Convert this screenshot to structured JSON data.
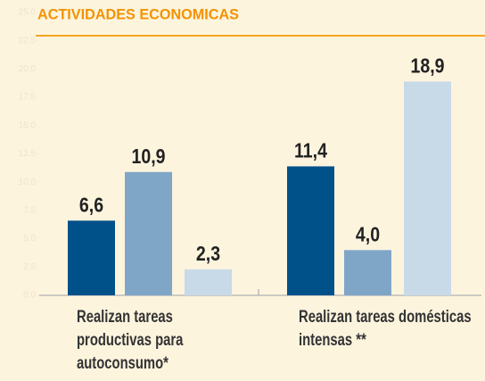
{
  "chart_data": {
    "type": "bar",
    "title": "ACTIVIDADES ECONOMICAS",
    "categories": [
      "Realizan tareas productivas para autoconsumo*",
      "Realizan tareas domésticas intensas **"
    ],
    "series": [
      {
        "color": "#00508a",
        "values": [
          6.6,
          11.4
        ],
        "value_labels": [
          "6,6",
          "11,4"
        ]
      },
      {
        "color": "#7fa6c7",
        "values": [
          10.9,
          4.0
        ],
        "value_labels": [
          "10,9",
          "4,0"
        ]
      },
      {
        "color": "#c8dae8",
        "values": [
          2.3,
          18.9
        ],
        "value_labels": [
          "2,3",
          "18,9"
        ]
      }
    ],
    "ylim": [
      0,
      25
    ],
    "yticks": [
      {
        "value": 0,
        "label": "0.0"
      },
      {
        "value": 2.5,
        "label": "2.5"
      },
      {
        "value": 5,
        "label": "5.0"
      },
      {
        "value": 7.5,
        "label": "7.5"
      },
      {
        "value": 10,
        "label": "10.0"
      },
      {
        "value": 12.5,
        "label": "12.5"
      },
      {
        "value": 15,
        "label": "15.0"
      },
      {
        "value": 17.5,
        "label": "17.5"
      },
      {
        "value": 20,
        "label": "20.0"
      },
      {
        "value": 22.5,
        "label": "22.5"
      },
      {
        "value": 25,
        "label": "25.0"
      }
    ],
    "grid": false
  }
}
